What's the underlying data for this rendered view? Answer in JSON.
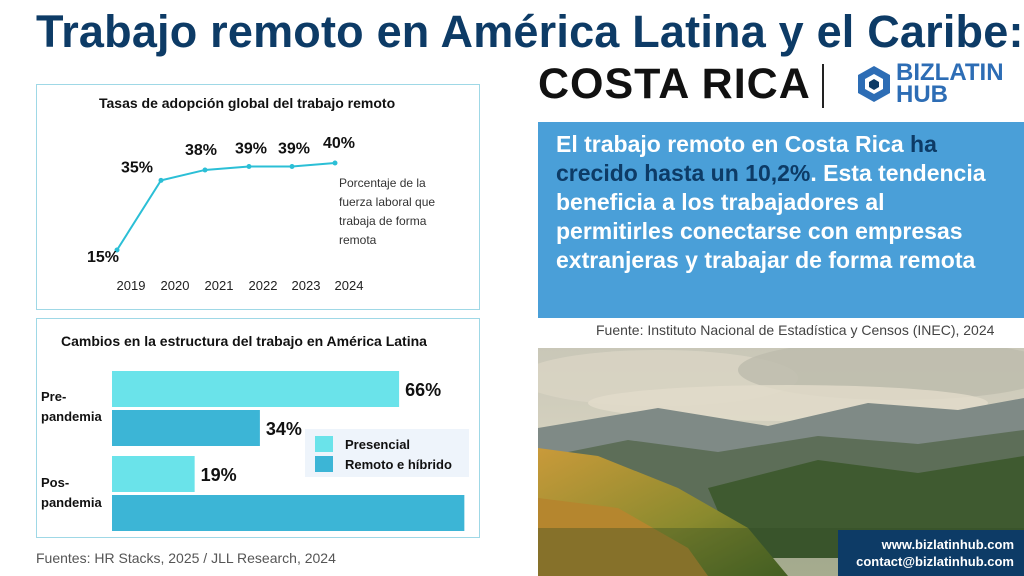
{
  "header": {
    "title": "Trabajo remoto en América Latina y el Caribe:",
    "country": "COSTA RICA",
    "logo_line1": "BIZLATIN",
    "logo_line2": "HUB"
  },
  "colors": {
    "navy": "#0d3b66",
    "line": "#2bbfd6",
    "presencial": "#6ae3ea",
    "remoto": "#3cb5d6",
    "bluebox": "#4a9fd8"
  },
  "chart_data": [
    {
      "type": "line",
      "title": "Tasas de adopción global del trabajo remoto",
      "x": [
        "2019",
        "2020",
        "2021",
        "2022",
        "2023",
        "2024"
      ],
      "values": [
        15,
        35,
        38,
        39,
        39,
        40
      ],
      "data_labels": [
        "15%",
        "35%",
        "38%",
        "39%",
        "39%",
        "40%"
      ],
      "annotation": "Porcentaje de la fuerza laboral que trabaja de forma remota",
      "ylim": [
        15,
        40
      ],
      "grid": false
    },
    {
      "type": "bar",
      "orientation": "horizontal",
      "title": "Cambios en la estructura del trabajo en América Latina",
      "categories": [
        "Pre-pandemia",
        "Pos-pandemia"
      ],
      "category_lines": [
        [
          "Pre-",
          "pandemia"
        ],
        [
          "Pos-",
          "pandemia"
        ]
      ],
      "series": [
        {
          "name": "Presencial",
          "values": [
            66,
            19
          ],
          "labels": [
            "66%",
            "19%"
          ]
        },
        {
          "name": "Remoto e híbrido",
          "values": [
            34,
            81
          ],
          "labels": [
            "34%",
            ""
          ]
        }
      ],
      "legend_position": "right",
      "xlim": [
        0,
        100
      ]
    }
  ],
  "sources": {
    "left": "Fuentes: HR Stacks, 2025 / JLL Research, 2024",
    "right": "Fuente:  Instituto Nacional de Estadística y Censos (INEC), 2024"
  },
  "highlight": {
    "part1": "El trabajo remoto en Costa Rica ",
    "part2": "ha crecido hasta un 10,2%",
    "part3": ". Esta tendencia beneficia a los trabajadores al permitirles conectarse con empresas extranjeras y trabajar de forma remota"
  },
  "contact": {
    "web": "www.bizlatinhub.com",
    "email": "contact@bizlatinhub.com"
  }
}
